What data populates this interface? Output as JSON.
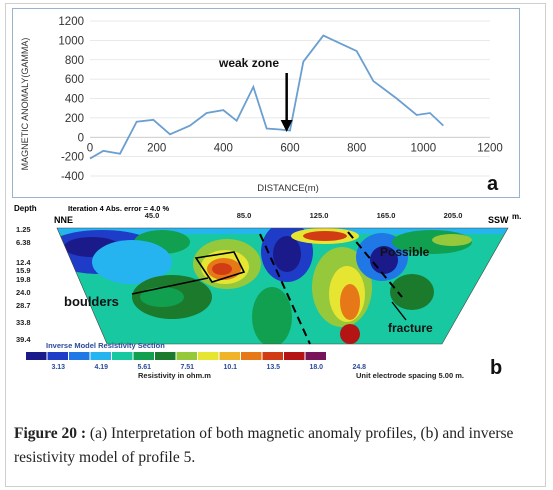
{
  "chart_data": [
    {
      "panel": "a",
      "type": "line",
      "xlabel": "DISTANCE(m)",
      "ylabel": "MAGNETIC ANOMALY(GAMMA)",
      "xlim": [
        0,
        1200
      ],
      "ylim": [
        -400,
        1200
      ],
      "x_ticks": [
        0,
        200,
        400,
        600,
        800,
        1000,
        1200
      ],
      "y_ticks": [
        -400,
        -200,
        0,
        200,
        400,
        600,
        800,
        1000,
        1200
      ],
      "panel_label": "a",
      "annotation": "weak zone",
      "annotation_x": 590,
      "series": [
        {
          "x": [
            0,
            40,
            90,
            140,
            190,
            240,
            300,
            350,
            400,
            440,
            490,
            530,
            570,
            600,
            640,
            700,
            750,
            800,
            850,
            920,
            980,
            1020,
            1060
          ],
          "y": [
            -220,
            -140,
            -170,
            160,
            180,
            30,
            120,
            250,
            280,
            170,
            520,
            90,
            80,
            70,
            780,
            1050,
            970,
            890,
            580,
            400,
            230,
            250,
            120
          ],
          "color": "#6a9fd0"
        }
      ]
    },
    {
      "panel": "b",
      "type": "heatmap",
      "depth_label": "Depth",
      "header_text": "Iteration 4 Abs. error = 4.0 %",
      "left_dir": "NNE",
      "right_dir": "SSW",
      "unit_m": "m.",
      "x_ticks": [
        "45.0",
        "85.0",
        "125.0",
        "165.0",
        "205.0"
      ],
      "depth_ticks": [
        "1.25",
        "6.38",
        "12.4",
        "15.9",
        "19.8",
        "24.0",
        "28.7",
        "33.8",
        "39.4"
      ],
      "annotations": {
        "boulders": "boulders",
        "fracture_line1": "Possible",
        "fracture_line2": "fracture"
      },
      "legend_title": "Inverse Model Resistivity Section",
      "legend_values": [
        "3.13",
        "4.19",
        "5.61",
        "7.51",
        "10.1",
        "13.5",
        "18.0",
        "24.8"
      ],
      "legend_colors": [
        "#1a1a8a",
        "#1e3cc8",
        "#1f78e6",
        "#25b4f0",
        "#18c8a0",
        "#10a050",
        "#1c7a2c",
        "#96c83c",
        "#e6e632",
        "#f0b428",
        "#e67818",
        "#d23c14",
        "#b41414",
        "#78145a"
      ],
      "legend_unit": "Resistivity in ohm.m",
      "electrode_spacing": "Unit electrode spacing 5.00 m.",
      "panel_label": "b"
    }
  ],
  "caption": {
    "label": "Figure 20 :",
    "text": " (a) Interpretation of both magnetic anomaly profiles, (b) and inverse resistivity model of profile 5."
  }
}
